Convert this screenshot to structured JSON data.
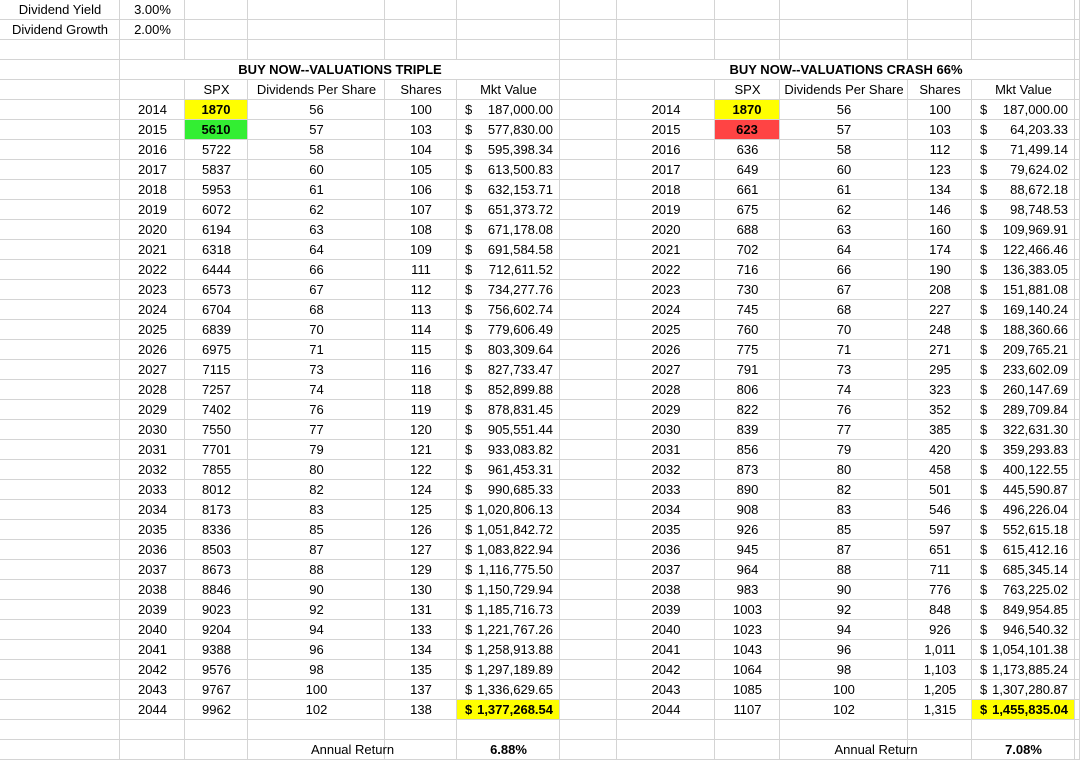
{
  "inputs": [
    {
      "label": "Dividend Yield",
      "value": "3.00%"
    },
    {
      "label": "Dividend Growth",
      "value": "2.00%"
    }
  ],
  "currency_symbol": "$",
  "tables": [
    {
      "title": "BUY NOW--VALUATIONS TRIPLE",
      "headers": [
        "SPX",
        "Dividends Per Share",
        "Shares",
        "Mkt Value"
      ],
      "rows": [
        [
          "2014",
          "1870",
          "56",
          "100",
          "187,000.00"
        ],
        [
          "2015",
          "5610",
          "57",
          "103",
          "577,830.00"
        ],
        [
          "2016",
          "5722",
          "58",
          "104",
          "595,398.34"
        ],
        [
          "2017",
          "5837",
          "60",
          "105",
          "613,500.83"
        ],
        [
          "2018",
          "5953",
          "61",
          "106",
          "632,153.71"
        ],
        [
          "2019",
          "6072",
          "62",
          "107",
          "651,373.72"
        ],
        [
          "2020",
          "6194",
          "63",
          "108",
          "671,178.08"
        ],
        [
          "2021",
          "6318",
          "64",
          "109",
          "691,584.58"
        ],
        [
          "2022",
          "6444",
          "66",
          "111",
          "712,611.52"
        ],
        [
          "2023",
          "6573",
          "67",
          "112",
          "734,277.76"
        ],
        [
          "2024",
          "6704",
          "68",
          "113",
          "756,602.74"
        ],
        [
          "2025",
          "6839",
          "70",
          "114",
          "779,606.49"
        ],
        [
          "2026",
          "6975",
          "71",
          "115",
          "803,309.64"
        ],
        [
          "2027",
          "7115",
          "73",
          "116",
          "827,733.47"
        ],
        [
          "2028",
          "7257",
          "74",
          "118",
          "852,899.88"
        ],
        [
          "2029",
          "7402",
          "76",
          "119",
          "878,831.45"
        ],
        [
          "2030",
          "7550",
          "77",
          "120",
          "905,551.44"
        ],
        [
          "2031",
          "7701",
          "79",
          "121",
          "933,083.82"
        ],
        [
          "2032",
          "7855",
          "80",
          "122",
          "961,453.31"
        ],
        [
          "2033",
          "8012",
          "82",
          "124",
          "990,685.33"
        ],
        [
          "2034",
          "8173",
          "83",
          "125",
          "1,020,806.13"
        ],
        [
          "2035",
          "8336",
          "85",
          "126",
          "1,051,842.72"
        ],
        [
          "2036",
          "8503",
          "87",
          "127",
          "1,083,822.94"
        ],
        [
          "2037",
          "8673",
          "88",
          "129",
          "1,116,775.50"
        ],
        [
          "2038",
          "8846",
          "90",
          "130",
          "1,150,729.94"
        ],
        [
          "2039",
          "9023",
          "92",
          "131",
          "1,185,716.73"
        ],
        [
          "2040",
          "9204",
          "94",
          "133",
          "1,221,767.26"
        ],
        [
          "2041",
          "9388",
          "96",
          "134",
          "1,258,913.88"
        ],
        [
          "2042",
          "9576",
          "98",
          "135",
          "1,297,189.89"
        ],
        [
          "2043",
          "9767",
          "100",
          "137",
          "1,336,629.65"
        ],
        [
          "2044",
          "9962",
          "102",
          "138",
          "1,377,268.54"
        ]
      ],
      "annual_return_label": "Annual Return",
      "annual_return": "6.88%"
    },
    {
      "title": "BUY NOW--VALUATIONS CRASH 66%",
      "headers": [
        "SPX",
        "Dividends Per Share",
        "Shares",
        "Mkt Value"
      ],
      "rows": [
        [
          "2014",
          "1870",
          "56",
          "100",
          "187,000.00"
        ],
        [
          "2015",
          "623",
          "57",
          "103",
          "64,203.33"
        ],
        [
          "2016",
          "636",
          "58",
          "112",
          "71,499.14"
        ],
        [
          "2017",
          "649",
          "60",
          "123",
          "79,624.02"
        ],
        [
          "2018",
          "661",
          "61",
          "134",
          "88,672.18"
        ],
        [
          "2019",
          "675",
          "62",
          "146",
          "98,748.53"
        ],
        [
          "2020",
          "688",
          "63",
          "160",
          "109,969.91"
        ],
        [
          "2021",
          "702",
          "64",
          "174",
          "122,466.46"
        ],
        [
          "2022",
          "716",
          "66",
          "190",
          "136,383.05"
        ],
        [
          "2023",
          "730",
          "67",
          "208",
          "151,881.08"
        ],
        [
          "2024",
          "745",
          "68",
          "227",
          "169,140.24"
        ],
        [
          "2025",
          "760",
          "70",
          "248",
          "188,360.66"
        ],
        [
          "2026",
          "775",
          "71",
          "271",
          "209,765.21"
        ],
        [
          "2027",
          "791",
          "73",
          "295",
          "233,602.09"
        ],
        [
          "2028",
          "806",
          "74",
          "323",
          "260,147.69"
        ],
        [
          "2029",
          "822",
          "76",
          "352",
          "289,709.84"
        ],
        [
          "2030",
          "839",
          "77",
          "385",
          "322,631.30"
        ],
        [
          "2031",
          "856",
          "79",
          "420",
          "359,293.83"
        ],
        [
          "2032",
          "873",
          "80",
          "458",
          "400,122.55"
        ],
        [
          "2033",
          "890",
          "82",
          "501",
          "445,590.87"
        ],
        [
          "2034",
          "908",
          "83",
          "546",
          "496,226.04"
        ],
        [
          "2035",
          "926",
          "85",
          "597",
          "552,615.18"
        ],
        [
          "2036",
          "945",
          "87",
          "651",
          "615,412.16"
        ],
        [
          "2037",
          "964",
          "88",
          "711",
          "685,345.14"
        ],
        [
          "2038",
          "983",
          "90",
          "776",
          "763,225.02"
        ],
        [
          "2039",
          "1003",
          "92",
          "848",
          "849,954.85"
        ],
        [
          "2040",
          "1023",
          "94",
          "926",
          "946,540.32"
        ],
        [
          "2041",
          "1043",
          "96",
          "1,011",
          "1,054,101.38"
        ],
        [
          "2042",
          "1064",
          "98",
          "1,103",
          "1,173,885.24"
        ],
        [
          "2043",
          "1085",
          "100",
          "1,205",
          "1,307,280.87"
        ],
        [
          "2044",
          "1107",
          "102",
          "1,315",
          "1,455,835.04"
        ]
      ],
      "annual_return_label": "Annual Return",
      "annual_return": "7.08%"
    }
  ]
}
